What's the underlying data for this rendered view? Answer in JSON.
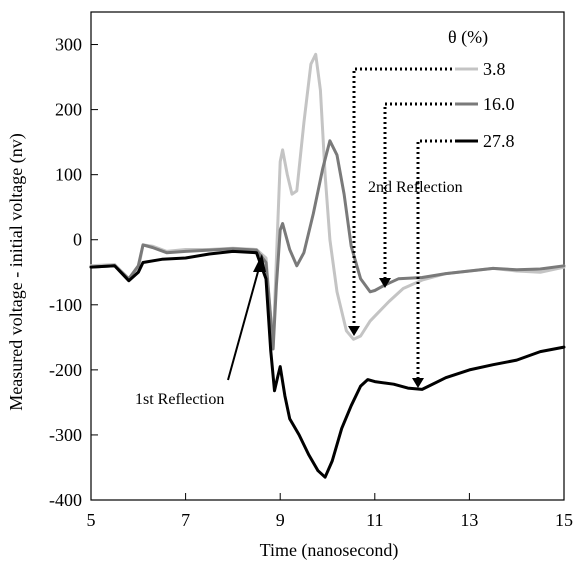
{
  "chart_data": {
    "type": "line",
    "xlabel": "Time (nanosecond)",
    "ylabel": "Measured voltage - initial voltage (nv)",
    "xlim": [
      5,
      15
    ],
    "ylim": [
      -400,
      350
    ],
    "xticks": [
      5,
      7,
      9,
      11,
      13,
      15
    ],
    "yticks": [
      -400,
      -300,
      -200,
      -100,
      0,
      100,
      200,
      300
    ],
    "grid": false,
    "legend_title": "θ (%)",
    "legend_position": "top-right",
    "series": [
      {
        "name": "3.8",
        "color": "#c4c4c4",
        "points": [
          [
            5.0,
            -40
          ],
          [
            5.5,
            -38
          ],
          [
            5.8,
            -60
          ],
          [
            6.0,
            -45
          ],
          [
            6.1,
            -8
          ],
          [
            6.3,
            -10
          ],
          [
            6.6,
            -18
          ],
          [
            7.0,
            -15
          ],
          [
            7.5,
            -15
          ],
          [
            8.0,
            -13
          ],
          [
            8.5,
            -15
          ],
          [
            8.7,
            -28
          ],
          [
            8.8,
            -120
          ],
          [
            8.85,
            -165
          ],
          [
            8.92,
            -30
          ],
          [
            9.0,
            120
          ],
          [
            9.05,
            138
          ],
          [
            9.15,
            100
          ],
          [
            9.25,
            70
          ],
          [
            9.35,
            75
          ],
          [
            9.5,
            180
          ],
          [
            9.65,
            270
          ],
          [
            9.75,
            285
          ],
          [
            9.85,
            230
          ],
          [
            9.95,
            100
          ],
          [
            10.05,
            0
          ],
          [
            10.2,
            -80
          ],
          [
            10.4,
            -140
          ],
          [
            10.55,
            -153
          ],
          [
            10.7,
            -148
          ],
          [
            10.9,
            -125
          ],
          [
            11.1,
            -110
          ],
          [
            11.3,
            -95
          ],
          [
            11.6,
            -75
          ],
          [
            12.0,
            -62
          ],
          [
            12.5,
            -52
          ],
          [
            13.0,
            -48
          ],
          [
            13.5,
            -44
          ],
          [
            14.0,
            -48
          ],
          [
            14.5,
            -50
          ],
          [
            15.0,
            -42
          ]
        ]
      },
      {
        "name": "16.0",
        "color": "#7a7a7a",
        "points": [
          [
            5.0,
            -42
          ],
          [
            5.5,
            -40
          ],
          [
            5.8,
            -60
          ],
          [
            6.0,
            -40
          ],
          [
            6.1,
            -8
          ],
          [
            6.3,
            -12
          ],
          [
            6.6,
            -20
          ],
          [
            7.0,
            -18
          ],
          [
            7.5,
            -16
          ],
          [
            8.0,
            -14
          ],
          [
            8.5,
            -16
          ],
          [
            8.7,
            -35
          ],
          [
            8.8,
            -120
          ],
          [
            8.85,
            -168
          ],
          [
            8.92,
            -70
          ],
          [
            9.0,
            15
          ],
          [
            9.05,
            25
          ],
          [
            9.2,
            -15
          ],
          [
            9.35,
            -40
          ],
          [
            9.5,
            -20
          ],
          [
            9.7,
            40
          ],
          [
            9.9,
            110
          ],
          [
            10.05,
            152
          ],
          [
            10.2,
            130
          ],
          [
            10.35,
            70
          ],
          [
            10.5,
            -10
          ],
          [
            10.7,
            -60
          ],
          [
            10.9,
            -80
          ],
          [
            11.0,
            -78
          ],
          [
            11.2,
            -70
          ],
          [
            11.5,
            -60
          ],
          [
            12.0,
            -58
          ],
          [
            12.5,
            -52
          ],
          [
            13.0,
            -48
          ],
          [
            13.5,
            -44
          ],
          [
            14.0,
            -46
          ],
          [
            14.5,
            -45
          ],
          [
            15.0,
            -40
          ]
        ]
      },
      {
        "name": "27.8",
        "color": "#000000",
        "points": [
          [
            5.0,
            -42
          ],
          [
            5.5,
            -40
          ],
          [
            5.8,
            -63
          ],
          [
            6.0,
            -50
          ],
          [
            6.1,
            -35
          ],
          [
            6.5,
            -30
          ],
          [
            7.0,
            -28
          ],
          [
            7.5,
            -22
          ],
          [
            8.0,
            -18
          ],
          [
            8.5,
            -20
          ],
          [
            8.7,
            -60
          ],
          [
            8.8,
            -170
          ],
          [
            8.88,
            -232
          ],
          [
            8.95,
            -210
          ],
          [
            9.0,
            -195
          ],
          [
            9.1,
            -240
          ],
          [
            9.2,
            -275
          ],
          [
            9.4,
            -300
          ],
          [
            9.6,
            -330
          ],
          [
            9.8,
            -355
          ],
          [
            9.95,
            -365
          ],
          [
            10.1,
            -340
          ],
          [
            10.3,
            -290
          ],
          [
            10.5,
            -255
          ],
          [
            10.7,
            -225
          ],
          [
            10.85,
            -215
          ],
          [
            11.0,
            -218
          ],
          [
            11.4,
            -222
          ],
          [
            11.7,
            -228
          ],
          [
            12.0,
            -230
          ],
          [
            12.5,
            -212
          ],
          [
            13.0,
            -200
          ],
          [
            13.5,
            -192
          ],
          [
            14.0,
            -185
          ],
          [
            14.5,
            -172
          ],
          [
            15.0,
            -165
          ]
        ]
      }
    ],
    "annotations": [
      {
        "text": "1st Reflection"
      },
      {
        "text": "2nd Reflection"
      }
    ]
  }
}
